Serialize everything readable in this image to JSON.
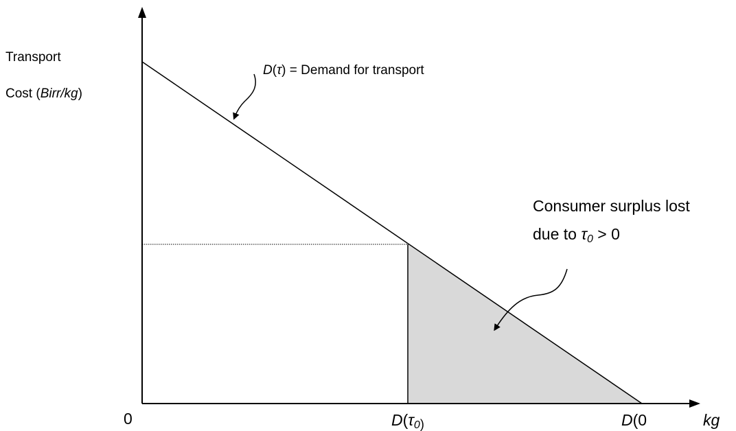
{
  "y_axis_label": {
    "line1": "Transport",
    "line2": [
      "Cost  (",
      "Birr/kg",
      ")"
    ]
  },
  "x_axis_label": "kg",
  "origin_label": "0",
  "demand_label": [
    "D",
    "(",
    "τ",
    ") = Demand for transport"
  ],
  "surplus_label": {
    "line1": "Consumer surplus lost",
    "line2": [
      "due to ",
      "τ",
      "0",
      " > 0"
    ]
  },
  "x_ticks": [
    [
      "D",
      "(",
      "τ",
      "0",
      ")"
    ],
    [
      "D",
      "(0"
    ]
  ]
}
